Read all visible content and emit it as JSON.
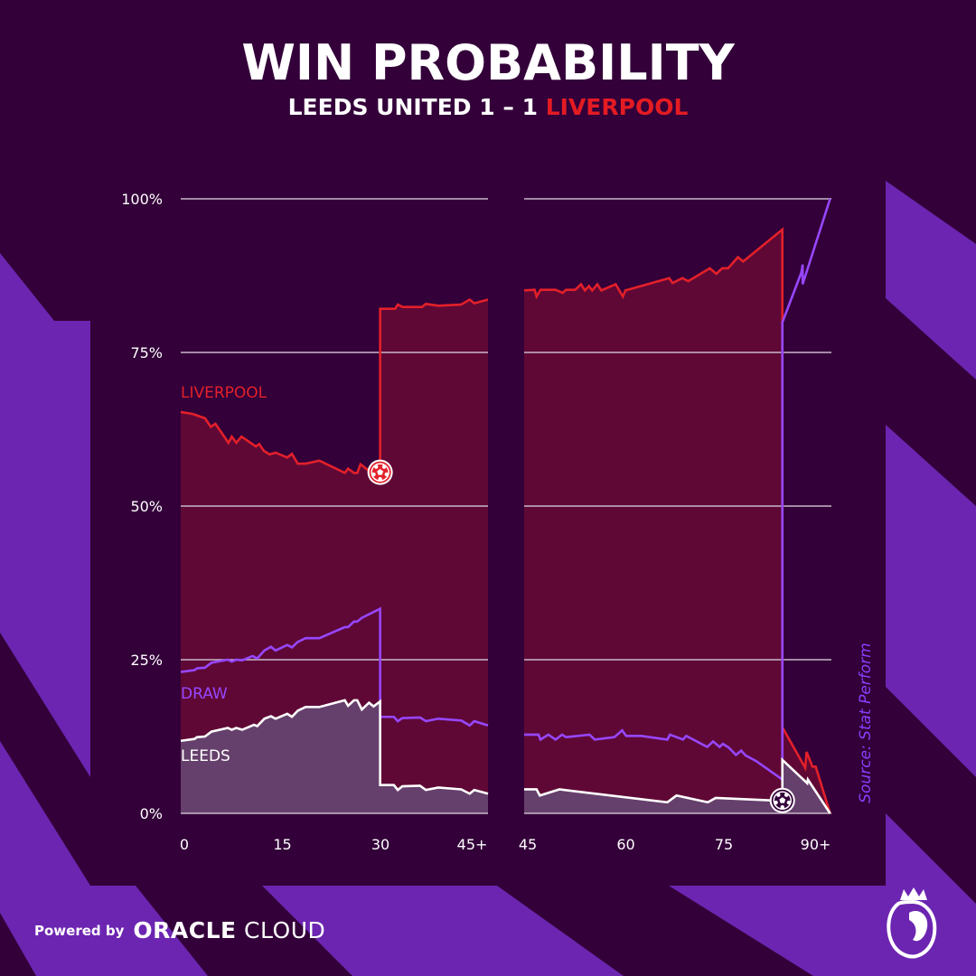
{
  "header": {
    "title": "WIN PROBABILITY",
    "home_team": "LEEDS UNITED",
    "score": "1 – 1",
    "away_team": "LIVERPOOL"
  },
  "source": "Source: Stat Perform",
  "footer": {
    "powered_by": "Powered by",
    "brand_a": "ORACLE",
    "brand_b": "CLOUD",
    "logo": "premier-league-lion-logo"
  },
  "colors": {
    "background": "#330039",
    "stripe": "#6c25b1",
    "liverpool": "#e3202a",
    "liverpool_fill": "#5f0836",
    "draw": "#9747ff",
    "leeds": "#ffffff",
    "leeds_fill": "#66406c",
    "grid": "#c9b8c9"
  },
  "chart_data": {
    "type": "line",
    "title": "WIN PROBABILITY",
    "subtitle": "LEEDS UNITED 1 – 1 LIVERPOOL",
    "panels": [
      {
        "name": "first-half",
        "xlim": [
          0,
          47
        ],
        "ticks": [
          {
            "v": 0,
            "label": "0"
          },
          {
            "v": 15,
            "label": "15"
          },
          {
            "v": 30,
            "label": "30"
          },
          {
            "v": 45,
            "label": "45+"
          }
        ]
      },
      {
        "name": "second-half",
        "xlim": [
          45,
          92
        ],
        "ticks": [
          {
            "v": 45,
            "label": "45"
          },
          {
            "v": 60,
            "label": "60"
          },
          {
            "v": 75,
            "label": "75"
          },
          {
            "v": 90,
            "label": "90+"
          }
        ]
      }
    ],
    "ylim": [
      0,
      100
    ],
    "yticks": [
      {
        "v": 0,
        "label": "0%"
      },
      {
        "v": 25,
        "label": "25%"
      },
      {
        "v": 50,
        "label": "50%"
      },
      {
        "v": 75,
        "label": "75%"
      },
      {
        "v": 100,
        "label": "100%"
      }
    ],
    "grid": true,
    "series": [
      {
        "name": "LIVERPOOL",
        "color": "#e3202a",
        "filled": true,
        "first_half": [
          [
            0,
            65.3
          ],
          [
            1.8,
            65.0
          ],
          [
            3.7,
            64.3
          ],
          [
            4.6,
            62.9
          ],
          [
            5.3,
            63.4
          ],
          [
            7.3,
            60.3
          ],
          [
            7.8,
            61.3
          ],
          [
            8.5,
            60.3
          ],
          [
            9.3,
            61.3
          ],
          [
            11.5,
            59.7
          ],
          [
            12.0,
            60.1
          ],
          [
            12.7,
            59.0
          ],
          [
            13.6,
            58.4
          ],
          [
            14.5,
            58.7
          ],
          [
            16.3,
            57.9
          ],
          [
            17.0,
            58.5
          ],
          [
            17.9,
            56.9
          ],
          [
            19.1,
            56.9
          ],
          [
            21.2,
            57.4
          ],
          [
            25.1,
            55.4
          ],
          [
            25.6,
            56.1
          ],
          [
            26.5,
            55.4
          ],
          [
            27.0,
            55.4
          ],
          [
            27.5,
            56.8
          ],
          [
            28.6,
            55.9
          ],
          [
            30.5,
            55.5
          ],
          [
            30.5,
            82.1
          ],
          [
            32.8,
            82.1
          ],
          [
            33.2,
            82.8
          ],
          [
            33.9,
            82.4
          ],
          [
            36.9,
            82.4
          ],
          [
            37.5,
            82.9
          ],
          [
            39.4,
            82.6
          ],
          [
            42.9,
            82.8
          ],
          [
            44.2,
            83.6
          ],
          [
            44.9,
            83.0
          ],
          [
            47.0,
            83.6
          ]
        ],
        "second_half": [
          [
            45,
            85.1
          ],
          [
            46.6,
            85.2
          ],
          [
            46.9,
            84.1
          ],
          [
            47.5,
            85.2
          ],
          [
            49.8,
            85.2
          ],
          [
            50.9,
            84.7
          ],
          [
            51.4,
            85.2
          ],
          [
            52.8,
            85.2
          ],
          [
            53.7,
            86.1
          ],
          [
            54.3,
            85.1
          ],
          [
            54.9,
            85.8
          ],
          [
            55.4,
            85.1
          ],
          [
            56.2,
            86.1
          ],
          [
            56.8,
            85.1
          ],
          [
            59.0,
            86.1
          ],
          [
            60.1,
            84.1
          ],
          [
            60.5,
            85.1
          ],
          [
            67.2,
            87.1
          ],
          [
            67.7,
            86.3
          ],
          [
            69.2,
            87.1
          ],
          [
            70.1,
            86.6
          ],
          [
            73.4,
            88.7
          ],
          [
            74.4,
            87.8
          ],
          [
            75.3,
            88.7
          ],
          [
            76.2,
            88.7
          ],
          [
            77.7,
            90.5
          ],
          [
            78.5,
            89.8
          ],
          [
            84.5,
            95.0
          ],
          [
            84.5,
            14.0
          ],
          [
            88.0,
            7.4
          ],
          [
            88.2,
            10.0
          ],
          [
            89.1,
            7.6
          ],
          [
            89.6,
            7.6
          ],
          [
            91.8,
            0
          ]
        ]
      },
      {
        "name": "DRAW",
        "color": "#9747ff",
        "filled": false,
        "first_half": [
          [
            0,
            23.0
          ],
          [
            2.1,
            23.3
          ],
          [
            2.5,
            23.6
          ],
          [
            3.7,
            23.7
          ],
          [
            4.7,
            24.5
          ],
          [
            7.2,
            25.0
          ],
          [
            7.8,
            24.7
          ],
          [
            8.5,
            25.0
          ],
          [
            9.4,
            24.9
          ],
          [
            11.0,
            25.6
          ],
          [
            11.7,
            25.2
          ],
          [
            12.8,
            26.5
          ],
          [
            13.8,
            27.1
          ],
          [
            14.5,
            26.5
          ],
          [
            16.3,
            27.4
          ],
          [
            17.0,
            27.0
          ],
          [
            17.9,
            27.9
          ],
          [
            19.1,
            28.5
          ],
          [
            21.2,
            28.5
          ],
          [
            25.1,
            30.3
          ],
          [
            25.6,
            30.3
          ],
          [
            26.5,
            31.2
          ],
          [
            27.0,
            31.2
          ],
          [
            27.7,
            31.8
          ],
          [
            30.5,
            33.3
          ],
          [
            30.5,
            15.7
          ],
          [
            32.6,
            15.7
          ],
          [
            33.2,
            15.0
          ],
          [
            33.9,
            15.5
          ],
          [
            36.6,
            15.6
          ],
          [
            37.5,
            15.0
          ],
          [
            39.4,
            15.4
          ],
          [
            42.9,
            15.1
          ],
          [
            44.2,
            14.3
          ],
          [
            44.9,
            15.0
          ],
          [
            47.0,
            14.3
          ]
        ],
        "second_half": [
          [
            45,
            12.8
          ],
          [
            47.2,
            12.8
          ],
          [
            47.5,
            12.0
          ],
          [
            48.7,
            12.8
          ],
          [
            49.8,
            12.0
          ],
          [
            50.8,
            12.8
          ],
          [
            51.4,
            12.4
          ],
          [
            55.0,
            12.8
          ],
          [
            55.8,
            12.0
          ],
          [
            58.8,
            12.4
          ],
          [
            60.0,
            13.5
          ],
          [
            60.6,
            12.6
          ],
          [
            62.9,
            12.6
          ],
          [
            66.9,
            12.0
          ],
          [
            67.3,
            12.8
          ],
          [
            69.3,
            12.0
          ],
          [
            69.8,
            12.6
          ],
          [
            73.0,
            10.8
          ],
          [
            73.9,
            11.7
          ],
          [
            74.9,
            10.8
          ],
          [
            75.4,
            11.3
          ],
          [
            76.3,
            10.7
          ],
          [
            77.4,
            9.5
          ],
          [
            78.2,
            10.2
          ],
          [
            78.9,
            9.4
          ],
          [
            80.5,
            8.5
          ],
          [
            84.5,
            5.5
          ],
          [
            84.5,
            79.9
          ],
          [
            87.4,
            88.0
          ],
          [
            87.6,
            89.3
          ],
          [
            87.6,
            86.1
          ],
          [
            91.8,
            100
          ]
        ]
      },
      {
        "name": "LEEDS",
        "color": "#ffffff",
        "filled": true,
        "first_half": [
          [
            0,
            11.8
          ],
          [
            2.1,
            12.1
          ],
          [
            2.5,
            12.4
          ],
          [
            3.7,
            12.5
          ],
          [
            4.7,
            13.3
          ],
          [
            7.2,
            13.9
          ],
          [
            7.8,
            13.6
          ],
          [
            8.5,
            13.9
          ],
          [
            9.4,
            13.6
          ],
          [
            11.2,
            14.4
          ],
          [
            11.7,
            14.2
          ],
          [
            12.8,
            15.4
          ],
          [
            13.8,
            15.8
          ],
          [
            14.5,
            15.4
          ],
          [
            16.3,
            16.2
          ],
          [
            17.0,
            15.7
          ],
          [
            17.9,
            16.7
          ],
          [
            19.1,
            17.3
          ],
          [
            21.2,
            17.3
          ],
          [
            25.1,
            18.4
          ],
          [
            25.6,
            17.5
          ],
          [
            26.5,
            18.4
          ],
          [
            27.0,
            18.4
          ],
          [
            27.7,
            16.9
          ],
          [
            28.8,
            18.0
          ],
          [
            29.5,
            17.4
          ],
          [
            30.5,
            18.2
          ],
          [
            30.5,
            4.6
          ],
          [
            32.6,
            4.6
          ],
          [
            33.2,
            3.8
          ],
          [
            33.9,
            4.4
          ],
          [
            36.6,
            4.5
          ],
          [
            37.5,
            3.8
          ],
          [
            39.4,
            4.2
          ],
          [
            42.9,
            3.9
          ],
          [
            44.2,
            3.2
          ],
          [
            44.9,
            3.8
          ],
          [
            47.0,
            3.2
          ]
        ],
        "second_half": [
          [
            45,
            3.9
          ],
          [
            46.9,
            3.9
          ],
          [
            47.4,
            2.9
          ],
          [
            50.4,
            3.9
          ],
          [
            66.9,
            1.8
          ],
          [
            68.3,
            2.9
          ],
          [
            73.1,
            1.8
          ],
          [
            74.3,
            2.5
          ],
          [
            82.8,
            2.1
          ],
          [
            84.5,
            2.1
          ],
          [
            84.5,
            8.7
          ],
          [
            88.3,
            4.9
          ],
          [
            88.4,
            5.5
          ],
          [
            91.8,
            0
          ]
        ]
      }
    ],
    "series_labels": [
      {
        "text": "LIVERPOOL",
        "color": "#e3202a"
      },
      {
        "text": "DRAW",
        "color": "#9747ff"
      },
      {
        "text": "LEEDS",
        "color": "#ffffff"
      }
    ],
    "goals": [
      {
        "team": "LIVERPOOL",
        "minute": 30.5,
        "value": 55.5,
        "color": "#e3202a",
        "icon": "football-icon"
      },
      {
        "team": "LEEDS",
        "minute": 84.5,
        "value": 2.1,
        "color": "#330039",
        "icon": "football-icon"
      }
    ]
  }
}
